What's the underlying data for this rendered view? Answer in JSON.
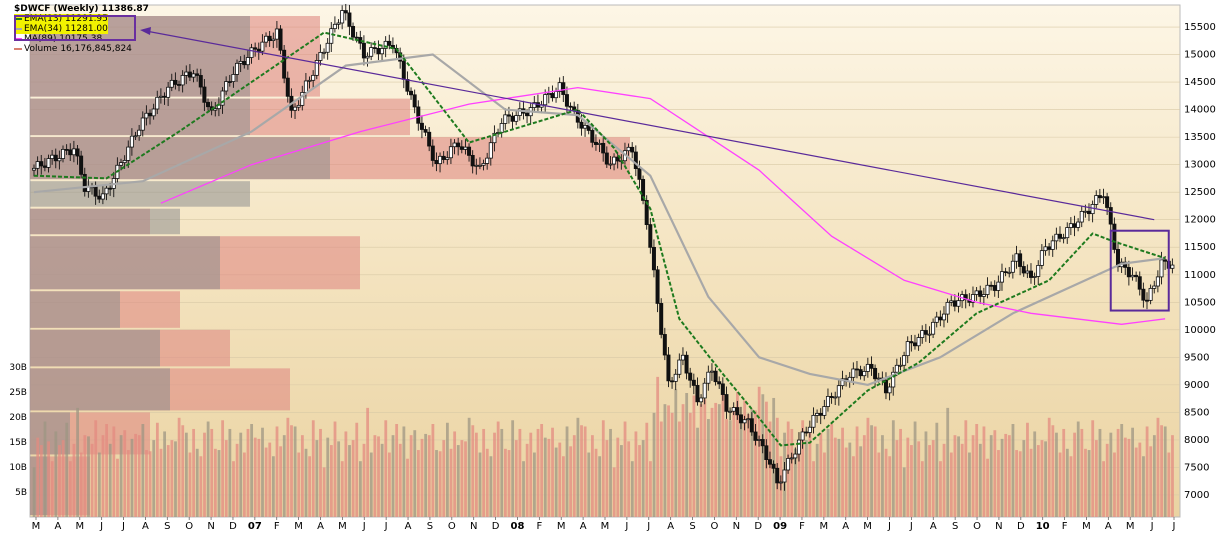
{
  "chart_data": {
    "type": "candlestick",
    "title": "$DWCF (Weekly) 11386.87",
    "series": [
      {
        "name": "EMA(13) 11291.95",
        "color": "#1e7a1e"
      },
      {
        "name": "EMA(34) 11281.00",
        "color": "#a8a8a8"
      },
      {
        "name": "MA(89) 10175.38",
        "color": "#ff40ff"
      },
      {
        "name": "Volume 16,176,845,824",
        "color": "#d88070"
      }
    ],
    "xlabels": [
      "M",
      "A",
      "M",
      "J",
      "J",
      "A",
      "S",
      "O",
      "N",
      "D",
      "07",
      "F",
      "M",
      "A",
      "M",
      "J",
      "J",
      "A",
      "S",
      "O",
      "N",
      "D",
      "08",
      "F",
      "M",
      "A",
      "M",
      "J",
      "J",
      "A",
      "S",
      "O",
      "N",
      "D",
      "09",
      "F",
      "M",
      "A",
      "M",
      "J",
      "J",
      "A",
      "S",
      "O",
      "N",
      "D",
      "10",
      "F",
      "M",
      "A",
      "M",
      "J",
      "J"
    ],
    "y_ticks": [
      7000,
      7500,
      8000,
      8500,
      9000,
      9500,
      10000,
      10500,
      11000,
      11500,
      12000,
      12500,
      13000,
      13500,
      14000,
      14500,
      15000,
      15500
    ],
    "y_tick_labels": [
      "7000",
      "7500",
      "8000",
      "8500",
      "9000",
      "9500",
      "10000",
      "10500",
      "11000",
      "11500",
      "12000",
      "12500",
      "13000",
      "13500",
      "14000",
      "14500",
      "15000",
      "15500"
    ],
    "ylim": [
      6600,
      15900
    ],
    "volume_ticks": [
      "5B",
      "10B",
      "15B",
      "20B",
      "25B",
      "30B"
    ],
    "price_path": [
      [
        0,
        12900
      ],
      [
        12,
        13300
      ],
      [
        15,
        12600
      ],
      [
        20,
        12400
      ],
      [
        24,
        12900
      ],
      [
        30,
        13700
      ],
      [
        38,
        14400
      ],
      [
        45,
        14700
      ],
      [
        50,
        13900
      ],
      [
        56,
        14700
      ],
      [
        62,
        15100
      ],
      [
        68,
        15400
      ],
      [
        72,
        13900
      ],
      [
        78,
        14700
      ],
      [
        86,
        15800
      ],
      [
        92,
        15000
      ],
      [
        100,
        15200
      ],
      [
        106,
        14000
      ],
      [
        112,
        13000
      ],
      [
        118,
        13400
      ],
      [
        124,
        12900
      ],
      [
        130,
        13800
      ],
      [
        138,
        14000
      ],
      [
        146,
        14400
      ],
      [
        150,
        13900
      ],
      [
        156,
        13400
      ],
      [
        160,
        13000
      ],
      [
        166,
        13300
      ],
      [
        170,
        12000
      ],
      [
        176,
        9000
      ],
      [
        180,
        9500
      ],
      [
        184,
        8700
      ],
      [
        188,
        9300
      ],
      [
        192,
        8600
      ],
      [
        198,
        8300
      ],
      [
        204,
        7600
      ],
      [
        206,
        7200
      ],
      [
        210,
        7700
      ],
      [
        214,
        8200
      ],
      [
        220,
        8700
      ],
      [
        226,
        9200
      ],
      [
        232,
        9300
      ],
      [
        236,
        8900
      ],
      [
        242,
        9700
      ],
      [
        248,
        10000
      ],
      [
        254,
        10500
      ],
      [
        260,
        10600
      ],
      [
        266,
        10800
      ],
      [
        272,
        11300
      ],
      [
        276,
        10900
      ],
      [
        280,
        11500
      ],
      [
        286,
        11800
      ],
      [
        292,
        12200
      ],
      [
        296,
        12500
      ],
      [
        300,
        11200
      ],
      [
        304,
        11000
      ],
      [
        308,
        10500
      ],
      [
        312,
        11200
      ]
    ],
    "ema13": [
      [
        0,
        12800
      ],
      [
        20,
        12750
      ],
      [
        40,
        13600
      ],
      [
        60,
        14500
      ],
      [
        80,
        15400
      ],
      [
        100,
        15100
      ],
      [
        120,
        13400
      ],
      [
        140,
        13800
      ],
      [
        150,
        14000
      ],
      [
        160,
        13300
      ],
      [
        170,
        12200
      ],
      [
        178,
        10200
      ],
      [
        190,
        9200
      ],
      [
        200,
        8400
      ],
      [
        206,
        7900
      ],
      [
        214,
        7950
      ],
      [
        230,
        8900
      ],
      [
        244,
        9400
      ],
      [
        260,
        10300
      ],
      [
        280,
        10900
      ],
      [
        292,
        11750
      ],
      [
        298,
        11600
      ],
      [
        312,
        11300
      ]
    ],
    "ema34": [
      [
        0,
        12500
      ],
      [
        30,
        12700
      ],
      [
        60,
        13600
      ],
      [
        86,
        14800
      ],
      [
        110,
        15000
      ],
      [
        130,
        14000
      ],
      [
        150,
        13900
      ],
      [
        170,
        12800
      ],
      [
        186,
        10600
      ],
      [
        200,
        9500
      ],
      [
        214,
        9200
      ],
      [
        230,
        9000
      ],
      [
        250,
        9500
      ],
      [
        270,
        10300
      ],
      [
        290,
        10900
      ],
      [
        300,
        11200
      ],
      [
        312,
        11300
      ]
    ],
    "ma89": [
      [
        35,
        12300
      ],
      [
        60,
        13000
      ],
      [
        90,
        13600
      ],
      [
        120,
        14100
      ],
      [
        150,
        14400
      ],
      [
        170,
        14200
      ],
      [
        200,
        12900
      ],
      [
        220,
        11700
      ],
      [
        240,
        10900
      ],
      [
        260,
        10500
      ],
      [
        275,
        10300
      ],
      [
        300,
        10100
      ],
      [
        312,
        10200
      ]
    ],
    "trendline": [
      [
        27,
        15600
      ],
      [
        309,
        12000
      ]
    ],
    "highlight_box": [
      [
        297,
        11800
      ],
      [
        313,
        10350
      ]
    ],
    "volume_bars": [
      8,
      12,
      10,
      15,
      11,
      9,
      13,
      10,
      12,
      14,
      9,
      11,
      16,
      10,
      12,
      13,
      11,
      14,
      10,
      12,
      15,
      11,
      13,
      9,
      12,
      14,
      10,
      11,
      13,
      12,
      15,
      10,
      9,
      12,
      14,
      11,
      13,
      10,
      12,
      11,
      16,
      14,
      12,
      10,
      13,
      11,
      9,
      12,
      15,
      13,
      11,
      10,
      14,
      12,
      13,
      9,
      11,
      12,
      10,
      13,
      15,
      12,
      11,
      14,
      10,
      12,
      9,
      13,
      11,
      12,
      16,
      14,
      13,
      10,
      12,
      11,
      9,
      14,
      12,
      13
    ],
    "volume_profile": [
      {
        "lo": 12200,
        "hi": 12700,
        "dn": 220,
        "up": 0
      },
      {
        "lo": 12700,
        "hi": 13500,
        "dn": 300,
        "up": 600
      },
      {
        "lo": 13500,
        "hi": 14200,
        "dn": 220,
        "up": 380
      },
      {
        "lo": 14200,
        "hi": 15700,
        "dn": 220,
        "up": 290
      },
      {
        "lo": 11700,
        "hi": 12200,
        "dn": 150,
        "up": 120
      },
      {
        "lo": 10700,
        "hi": 11700,
        "dn": 190,
        "up": 330
      },
      {
        "lo": 10000,
        "hi": 10700,
        "dn": 90,
        "up": 150
      },
      {
        "lo": 9300,
        "hi": 10000,
        "dn": 130,
        "up": 200
      },
      {
        "lo": 8500,
        "hi": 9300,
        "dn": 140,
        "up": 260
      },
      {
        "lo": 7700,
        "hi": 8500,
        "dn": 40,
        "up": 120
      },
      {
        "lo": 6600,
        "hi": 7700,
        "dn": 20,
        "up": 60
      }
    ]
  }
}
